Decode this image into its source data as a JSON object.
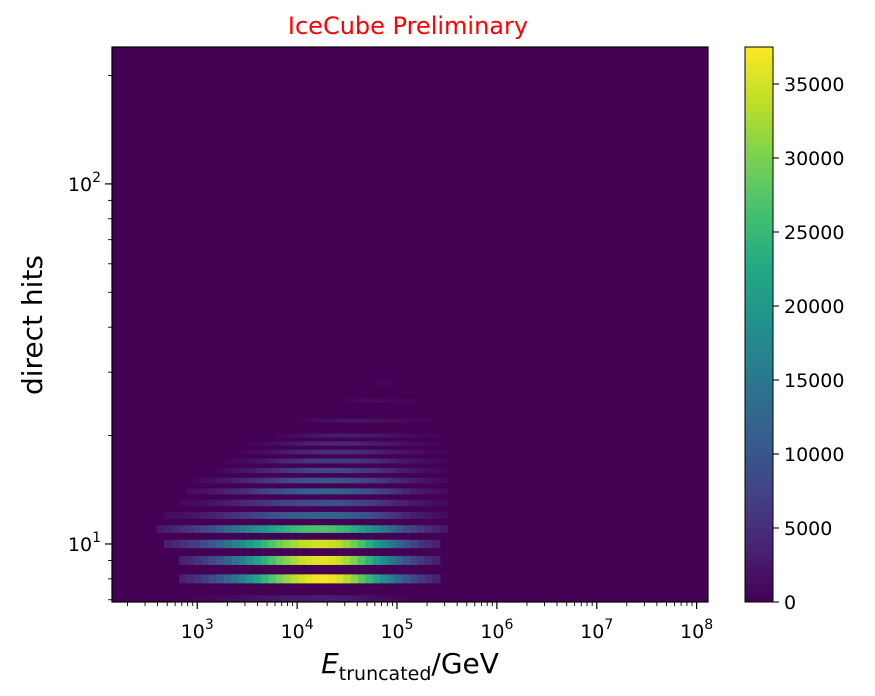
{
  "chart_data": {
    "type": "heatmap",
    "title": "IceCube Preliminary",
    "xlabel": {
      "main": "E",
      "subscript": "truncated",
      "suffix": "/GeV"
    },
    "ylabel": "direct hits",
    "x_scale": "log",
    "y_scale": "log",
    "xlim": [
      140,
      130000000
    ],
    "ylim": [
      6.9,
      240
    ],
    "x_ticks": [
      {
        "value": 1000,
        "base": "10",
        "exp": "3"
      },
      {
        "value": 10000,
        "base": "10",
        "exp": "4"
      },
      {
        "value": 100000,
        "base": "10",
        "exp": "5"
      },
      {
        "value": 1000000,
        "base": "10",
        "exp": "6"
      },
      {
        "value": 10000000,
        "base": "10",
        "exp": "7"
      },
      {
        "value": 100000000,
        "base": "10",
        "exp": "8"
      }
    ],
    "y_ticks": [
      {
        "value": 10,
        "base": "10",
        "exp": "1"
      },
      {
        "value": 100,
        "base": "10",
        "exp": "2"
      }
    ],
    "colorbar": {
      "colormap": "viridis",
      "min": 0,
      "max": 37500,
      "ticks": [
        "0",
        "5000",
        "10000",
        "15000",
        "20000",
        "25000",
        "30000",
        "35000"
      ],
      "tick_values": [
        0,
        5000,
        10000,
        15000,
        20000,
        25000,
        30000,
        35000
      ]
    },
    "background_value": 0,
    "rows": [
      {
        "y": 7,
        "x_peak": 18000,
        "peak": 3000,
        "x_min": 800,
        "x_max": 150000
      },
      {
        "y": 8,
        "x_peak": 18000,
        "peak": 37000,
        "x_min": 700,
        "x_max": 250000
      },
      {
        "y": 9,
        "x_peak": 18000,
        "peak": 36000,
        "x_min": 700,
        "x_max": 250000
      },
      {
        "y": 10,
        "x_peak": 18000,
        "peak": 35000,
        "x_min": 500,
        "x_max": 250000
      },
      {
        "y": 11,
        "x_peak": 18000,
        "peak": 27000,
        "x_min": 400,
        "x_max": 300000
      },
      {
        "y": 12,
        "x_peak": 20000,
        "peak": 12000,
        "x_min": 500,
        "x_max": 300000
      },
      {
        "y": 13,
        "x_peak": 20000,
        "peak": 9000,
        "x_min": 700,
        "x_max": 300000
      },
      {
        "y": 14,
        "x_peak": 20000,
        "peak": 12000,
        "x_min": 800,
        "x_max": 300000
      },
      {
        "y": 15,
        "x_peak": 20000,
        "peak": 10000,
        "x_min": 1000,
        "x_max": 300000
      },
      {
        "y": 16,
        "x_peak": 20000,
        "peak": 8000,
        "x_min": 1500,
        "x_max": 300000
      },
      {
        "y": 17,
        "x_peak": 22000,
        "peak": 6500,
        "x_min": 2000,
        "x_max": 300000
      },
      {
        "y": 18,
        "x_peak": 25000,
        "peak": 5000,
        "x_min": 2500,
        "x_max": 300000
      },
      {
        "y": 19,
        "x_peak": 25000,
        "peak": 4000,
        "x_min": 3000,
        "x_max": 300000
      },
      {
        "y": 20,
        "x_peak": 30000,
        "peak": 3000,
        "x_min": 5000,
        "x_max": 300000
      },
      {
        "y": 22,
        "x_peak": 35000,
        "peak": 2000,
        "x_min": 8000,
        "x_max": 300000
      },
      {
        "y": 25,
        "x_peak": 50000,
        "peak": 1000,
        "x_min": 20000,
        "x_max": 300000
      },
      {
        "y": 28,
        "x_peak": 70000,
        "peak": 500,
        "x_min": 40000,
        "x_max": 200000
      }
    ],
    "grid": false
  }
}
